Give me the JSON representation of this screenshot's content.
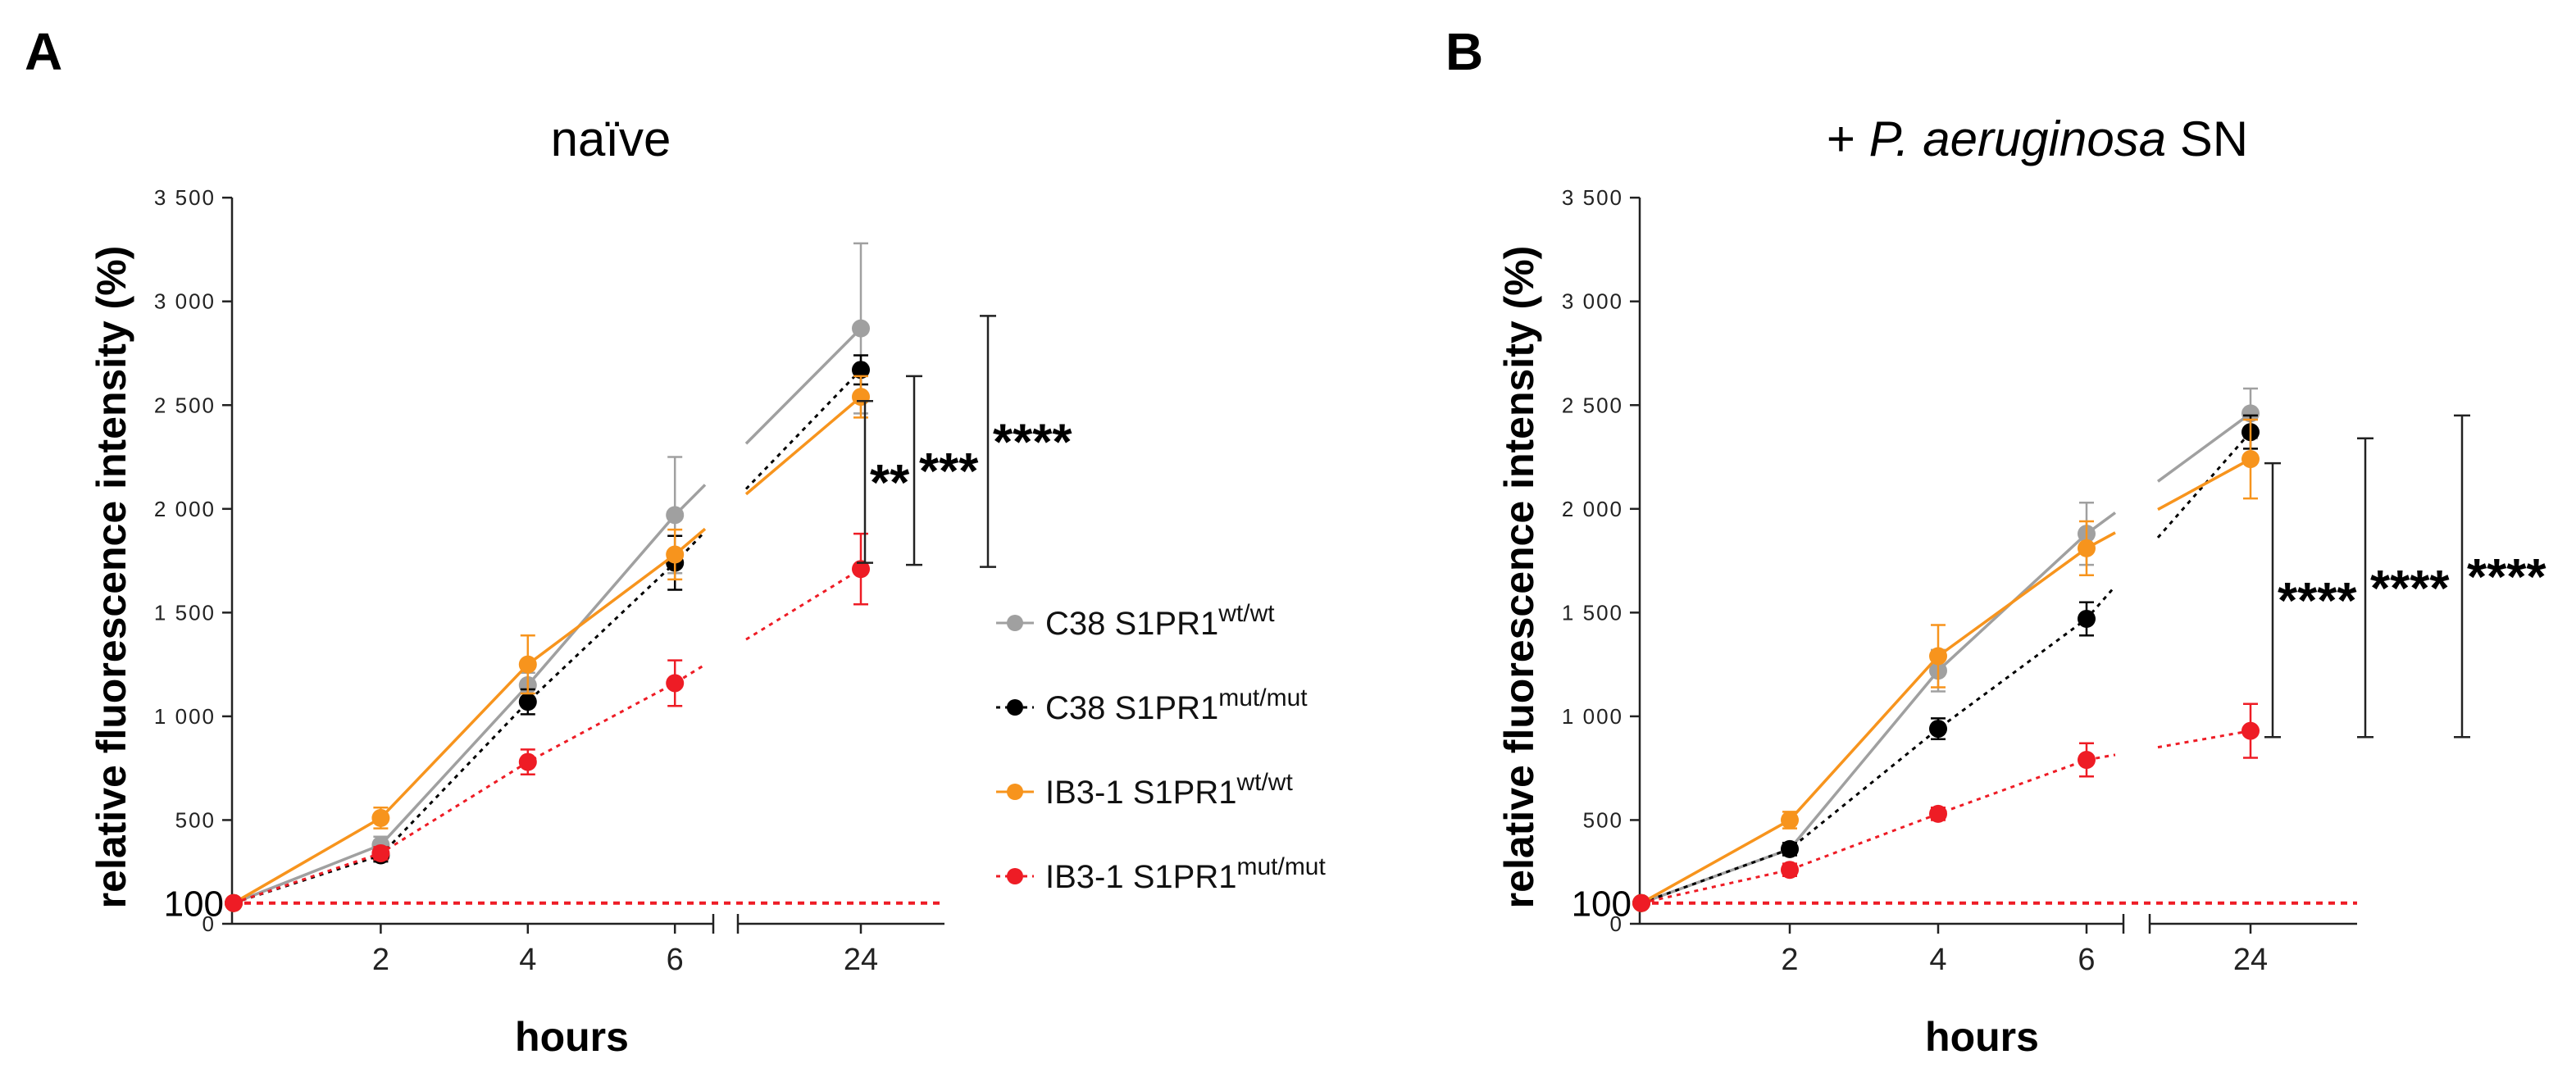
{
  "chart_data": [
    {
      "panel_label": "A",
      "title": "naïve",
      "title_parts": [
        {
          "text": "naïve",
          "italic": false
        }
      ],
      "type": "line",
      "xlabel": "hours",
      "ylabel": "relative fluorescence intensity (%)",
      "x_tick_labels": [
        "2",
        "4",
        "6",
        "24"
      ],
      "x": [
        0,
        2,
        4,
        6,
        24
      ],
      "y_ticks": [
        "0",
        "500",
        "1 000",
        "1 500",
        "2 000",
        "2 500",
        "3 000",
        "3 500"
      ],
      "baseline_label": "100",
      "ylim": [
        0,
        3500
      ],
      "series": [
        {
          "name": "C38 S1PR1",
          "sup": "wt/wt",
          "color": "#a0a0a0",
          "dash": false,
          "values": [
            100,
            380,
            1150,
            1970,
            2870
          ],
          "errors": [
            0,
            40,
            60,
            280,
            410
          ]
        },
        {
          "name": "C38 S1PR1",
          "sup": "mut/mut",
          "color": "#000000",
          "dash": true,
          "values": [
            100,
            330,
            1070,
            1740,
            2670
          ],
          "errors": [
            0,
            30,
            60,
            130,
            70
          ]
        },
        {
          "name": "IB3-1 S1PR1",
          "sup": "wt/wt",
          "color": "#f7941d",
          "dash": false,
          "values": [
            100,
            510,
            1250,
            1780,
            2540
          ],
          "errors": [
            0,
            50,
            140,
            120,
            100
          ]
        },
        {
          "name": "IB3-1 S1PR1",
          "sup": "mut/mut",
          "color": "#ee1c25",
          "dash": true,
          "values": [
            100,
            340,
            780,
            1160,
            1710
          ],
          "errors": [
            0,
            30,
            60,
            110,
            170
          ]
        }
      ],
      "significance": [
        {
          "label": "**",
          "y_top": 2520,
          "y_bottom": 1740
        },
        {
          "label": "***",
          "y_top": 2640,
          "y_bottom": 1730
        },
        {
          "label": "****",
          "y_top": 2930,
          "y_bottom": 1720
        }
      ]
    },
    {
      "panel_label": "B",
      "title": "+ P. aeruginosa SN",
      "title_parts": [
        {
          "text": "+ ",
          "italic": false
        },
        {
          "text": "P. aeruginosa",
          "italic": true
        },
        {
          "text": " SN",
          "italic": false
        }
      ],
      "type": "line",
      "xlabel": "hours",
      "ylabel": "relative fluorescence intensity (%)",
      "x_tick_labels": [
        "2",
        "4",
        "6",
        "24"
      ],
      "x": [
        0,
        2,
        4,
        6,
        24
      ],
      "y_ticks": [
        "0",
        "500",
        "1 000",
        "1 500",
        "2 000",
        "2 500",
        "3 000",
        "3 500"
      ],
      "baseline_label": "100",
      "ylim": [
        0,
        3500
      ],
      "series": [
        {
          "name": "C38 S1PR1",
          "sup": "wt/wt",
          "color": "#a0a0a0",
          "dash": false,
          "values": [
            100,
            360,
            1220,
            1880,
            2460
          ],
          "errors": [
            0,
            30,
            100,
            150,
            120
          ]
        },
        {
          "name": "C38 S1PR1",
          "sup": "mut/mut",
          "color": "#000000",
          "dash": true,
          "values": [
            100,
            360,
            940,
            1470,
            2370
          ],
          "errors": [
            0,
            30,
            50,
            80,
            80
          ]
        },
        {
          "name": "IB3-1 S1PR1",
          "sup": "wt/wt",
          "color": "#f7941d",
          "dash": false,
          "values": [
            100,
            500,
            1290,
            1810,
            2240
          ],
          "errors": [
            0,
            40,
            150,
            130,
            190
          ]
        },
        {
          "name": "IB3-1 S1PR1",
          "sup": "mut/mut",
          "color": "#ee1c25",
          "dash": true,
          "values": [
            100,
            260,
            530,
            790,
            930
          ],
          "errors": [
            0,
            30,
            30,
            80,
            130
          ]
        }
      ],
      "significance": [
        {
          "label": "****",
          "y_top": 2220,
          "y_bottom": 900
        },
        {
          "label": "****",
          "y_top": 2340,
          "y_bottom": 900
        },
        {
          "label": "****",
          "y_top": 2450,
          "y_bottom": 900
        }
      ]
    }
  ],
  "legend": [
    {
      "name": "C38 S1PR1",
      "sup": "wt/wt"
    },
    {
      "name": "C38 S1PR1",
      "sup": "mut/mut"
    },
    {
      "name": "IB3-1 S1PR1",
      "sup": "wt/wt"
    },
    {
      "name": "IB3-1 S1PR1",
      "sup": "mut/mut"
    }
  ]
}
